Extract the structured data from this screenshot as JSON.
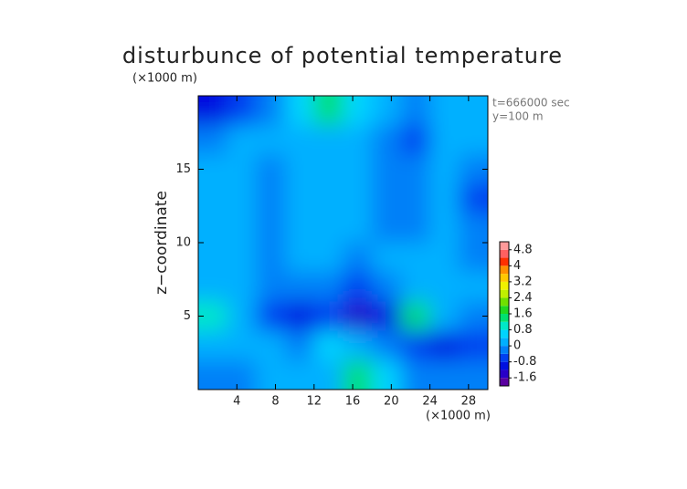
{
  "chart_data": {
    "type": "contour",
    "title": "disturbunce of potential temperature",
    "y_unit": "(×1000 m)",
    "x_unit": "(×1000 m)",
    "ylabel": "z−coordinate",
    "annotations": [
      "t=666000 sec",
      "y=100 m"
    ],
    "xlim": [
      0,
      30
    ],
    "ylim": [
      0,
      20
    ],
    "xticks": [
      4,
      8,
      12,
      16,
      20,
      24,
      28
    ],
    "yticks": [
      5,
      10,
      15
    ],
    "x": [
      1.5,
      4.5,
      7.5,
      10.5,
      13.5,
      16.5,
      19.5,
      22.5,
      25.5,
      28.5
    ],
    "y": [
      19,
      17,
      15,
      13,
      11,
      9,
      7,
      5,
      3,
      1
    ],
    "z": [
      [
        -0.8,
        -0.6,
        -0.2,
        0.6,
        1.2,
        0.8,
        0.2,
        -0.3,
        0.1,
        0.1
      ],
      [
        -0.2,
        0,
        0.1,
        0.2,
        0.3,
        0.2,
        -0.2,
        -0.6,
        0,
        0
      ],
      [
        0,
        0,
        -0.2,
        0,
        0.1,
        0.1,
        -0.4,
        -0.4,
        0,
        -0.2
      ],
      [
        0,
        0,
        -0.2,
        0,
        0.3,
        0.1,
        -0.2,
        -0.2,
        0,
        -0.6
      ],
      [
        0,
        0,
        -0.3,
        0.1,
        0.3,
        0,
        -0.2,
        -0.2,
        0.1,
        -0.4
      ],
      [
        0.2,
        0,
        -0.3,
        0,
        0.2,
        -0.2,
        0,
        0,
        0.1,
        -0.3
      ],
      [
        0.3,
        0,
        -0.1,
        -0.1,
        -0.3,
        -0.6,
        -0.2,
        0,
        0.3,
        0
      ],
      [
        1,
        0.3,
        -0.5,
        -0.8,
        -0.6,
        -1.4,
        -0.8,
        1.2,
        0.4,
        -0.2
      ],
      [
        0.3,
        0,
        0.1,
        -0.2,
        0.5,
        0.2,
        -0.4,
        -0.6,
        -0.8,
        -0.6
      ],
      [
        -0.3,
        -0.2,
        0,
        0.2,
        0.4,
        1.2,
        0.5,
        -0.2,
        -0.4,
        -0.3
      ]
    ],
    "colorbar_lim": [
      -2,
      5.2
    ],
    "colorbar_ticks": [
      -1.6,
      -0.8,
      0,
      0.8,
      1.6,
      2.4,
      3.2,
      4,
      4.8
    ],
    "colors": [
      "#5a00a0",
      "#2800c8",
      "#0010e0",
      "#0040f0",
      "#0080f8",
      "#00b0ff",
      "#00d4ff",
      "#00e8c8",
      "#00e070",
      "#20d820",
      "#70e000",
      "#c0f000",
      "#f0f000",
      "#ffc800",
      "#ff9000",
      "#ff3000",
      "#ff6060",
      "#ff9a9a"
    ]
  }
}
